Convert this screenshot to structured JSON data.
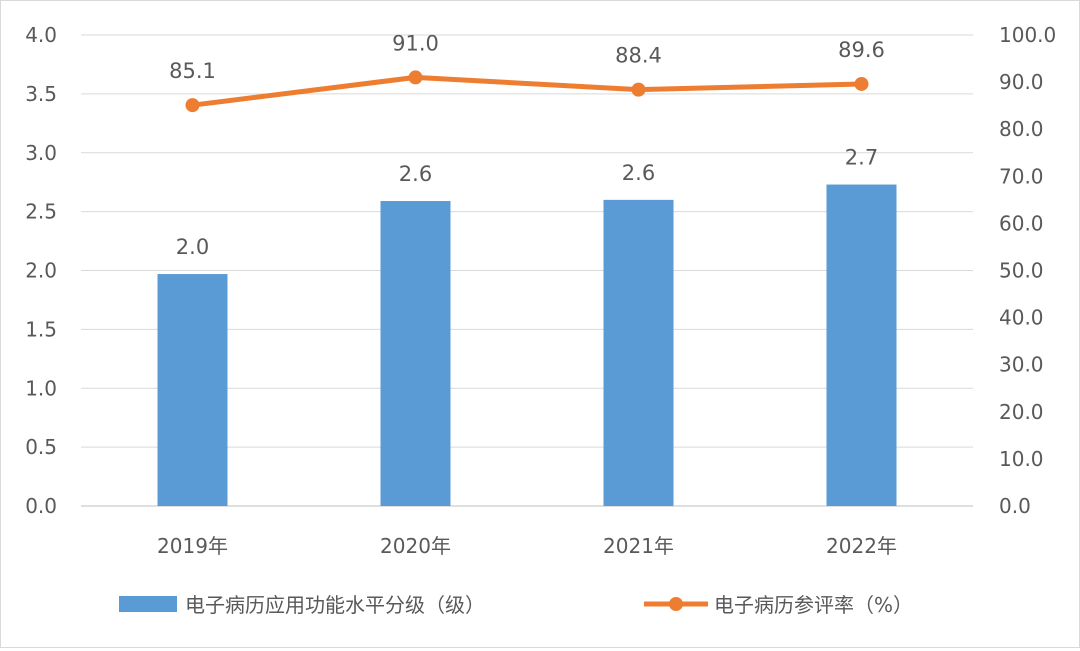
{
  "chart_data": {
    "type": "bar+line",
    "categories": [
      "2019年",
      "2020年",
      "2021年",
      "2022年"
    ],
    "series": [
      {
        "name": "电子病历应用功能水平分级（级）",
        "type": "bar",
        "axis": "left",
        "values": [
          1.97,
          2.59,
          2.6,
          2.73
        ],
        "labels": [
          "2.0",
          "2.6",
          "2.6",
          "2.7"
        ],
        "color": "#5B9BD5"
      },
      {
        "name": "电子病历参评率（%）",
        "type": "line",
        "axis": "right",
        "values": [
          85.1,
          91.0,
          88.4,
          89.6
        ],
        "labels": [
          "85.1",
          "91.0",
          "88.4",
          "89.6"
        ],
        "color": "#ED7D31"
      }
    ],
    "y_left": {
      "range": [
        0,
        4.0
      ],
      "ticks": [
        "0.0",
        "0.5",
        "1.0",
        "1.5",
        "2.0",
        "2.5",
        "3.0",
        "3.5",
        "4.0"
      ]
    },
    "y_right": {
      "range": [
        0,
        100.0
      ],
      "ticks": [
        "0.0",
        "10.0",
        "20.0",
        "30.0",
        "40.0",
        "50.0",
        "60.0",
        "70.0",
        "80.0",
        "90.0",
        "100.0"
      ]
    },
    "grid": true,
    "legend": "bottom"
  }
}
